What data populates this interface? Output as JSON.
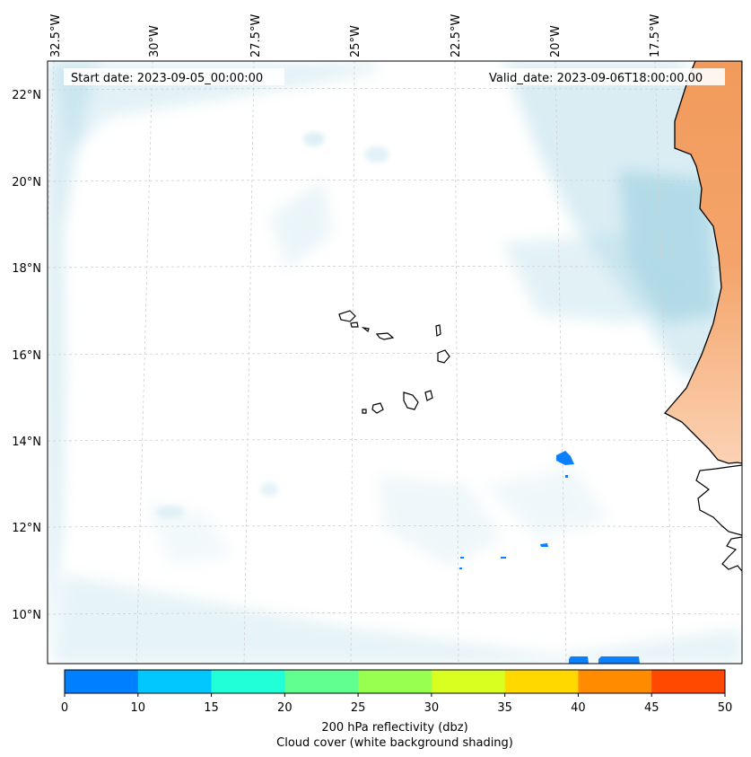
{
  "map": {
    "start_label": "Start date: 2023-09-05_00:00:00",
    "valid_label": "Valid_date: 2023-09-06T18:00:00.00",
    "lon_labels": [
      "32.5°W",
      "30°W",
      "27.5°W",
      "25°W",
      "22.5°W",
      "20°W",
      "17.5°W"
    ],
    "lat_labels": [
      "22°N",
      "20°N",
      "18°N",
      "16°N",
      "14°N",
      "12°N",
      "10°N"
    ],
    "land_color": "#f4a46a",
    "cloud_color": "#add8e6",
    "reflectivity_color": "#0a7fff"
  },
  "colorbar": {
    "ticks": [
      "0",
      "10",
      "15",
      "20",
      "25",
      "30",
      "35",
      "40",
      "45",
      "50"
    ],
    "colors": [
      "#0080ff",
      "#00c8ff",
      "#20ffd8",
      "#60ff90",
      "#98ff50",
      "#d8ff20",
      "#ffd800",
      "#ff8c00",
      "#ff4800"
    ],
    "caption_line1": "200 hPa reflectivity (dbz)",
    "caption_line2": "Cloud cover (white background shading)"
  }
}
